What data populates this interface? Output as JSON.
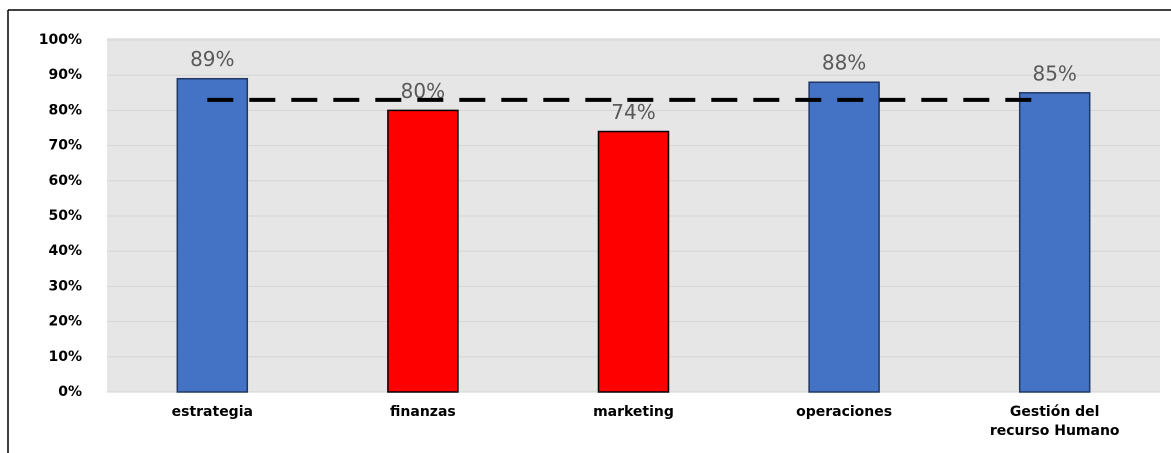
{
  "chart_data": {
    "type": "bar",
    "categories": [
      "estrategia",
      "finanzas",
      "marketing",
      "operaciones",
      [
        "Gestión del",
        "recurso Humano"
      ]
    ],
    "values": [
      89,
      80,
      74,
      88,
      85
    ],
    "value_labels": [
      "89%",
      "80%",
      "74%",
      "88%",
      "85%"
    ],
    "colors": [
      "#4472c4",
      "#ff0000",
      "#ff0000",
      "#4472c4",
      "#4472c4"
    ],
    "reference_line": 83,
    "ylim": [
      0,
      100
    ],
    "yticks": [
      {
        "value": 0,
        "label": "0%"
      },
      {
        "value": 10,
        "label": "10%"
      },
      {
        "value": 20,
        "label": "20%"
      },
      {
        "value": 30,
        "label": "30%"
      },
      {
        "value": 40,
        "label": "40%"
      },
      {
        "value": 50,
        "label": "50%"
      },
      {
        "value": 60,
        "label": "60%"
      },
      {
        "value": 70,
        "label": "70%"
      },
      {
        "value": 80,
        "label": "80%"
      },
      {
        "value": 90,
        "label": "90%"
      },
      {
        "value": 100,
        "label": "100%"
      }
    ],
    "grid": true
  }
}
